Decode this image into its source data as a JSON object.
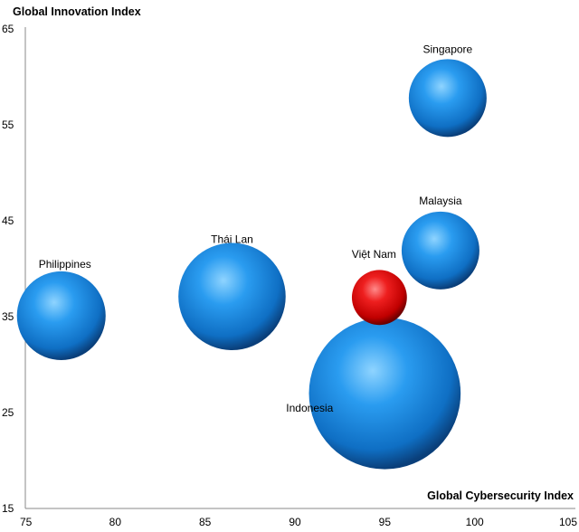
{
  "chart_data": {
    "type": "bubble",
    "xlabel": "Global Cybersecurity  Index",
    "ylabel": "Global Innovation Index",
    "xlim": [
      75,
      105
    ],
    "ylim": [
      15,
      65
    ],
    "xticks": [
      75,
      80,
      85,
      90,
      95,
      100,
      105
    ],
    "yticks": [
      15,
      25,
      35,
      45,
      55,
      65
    ],
    "grid": false,
    "colors": {
      "default": "#1e8fe0",
      "highlight": "#e01010"
    },
    "points": [
      {
        "label": "Singapore",
        "x": 98.5,
        "y": 57.8,
        "size": 1.0,
        "highlight": false
      },
      {
        "label": "Malaysia",
        "x": 98.1,
        "y": 41.9,
        "size": 1.0,
        "highlight": false
      },
      {
        "label": "Việt Nam",
        "x": 94.7,
        "y": 37.0,
        "size": 0.5,
        "highlight": false
      },
      {
        "label": "Thái  Lan",
        "x": 86.5,
        "y": 37.1,
        "size": 1.9,
        "highlight": false
      },
      {
        "label": "Philippines",
        "x": 77.0,
        "y": 35.1,
        "size": 1.3,
        "highlight": false
      },
      {
        "label": "Indonesia",
        "x": 95.0,
        "y": 27.0,
        "size": 3.8,
        "highlight": false
      }
    ]
  }
}
